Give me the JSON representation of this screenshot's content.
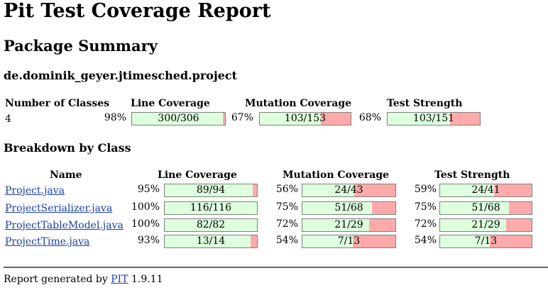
{
  "title": "Pit Test Coverage Report",
  "package_summary_heading": "Package Summary",
  "package_name": "de.dominik_geyer.jtimesched.project",
  "summary": {
    "headers": {
      "classes": "Number of Classes",
      "line": "Line Coverage",
      "mutation": "Mutation Coverage",
      "strength": "Test Strength"
    },
    "classes": "4",
    "line": {
      "percent": "98%",
      "fraction": "300/306",
      "value": 0.98
    },
    "mutation": {
      "percent": "67%",
      "fraction": "103/153",
      "value": 0.67
    },
    "strength": {
      "percent": "68%",
      "fraction": "103/151",
      "value": 0.68
    }
  },
  "breakdown": {
    "heading": "Breakdown by Class",
    "headers": {
      "name": "Name",
      "line": "Line Coverage",
      "mutation": "Mutation Coverage",
      "strength": "Test Strength"
    },
    "rows": [
      {
        "name": "Project.java",
        "line": {
          "percent": "95%",
          "fraction": "89/94",
          "value": 0.95
        },
        "mutation": {
          "percent": "56%",
          "fraction": "24/43",
          "value": 0.56
        },
        "strength": {
          "percent": "59%",
          "fraction": "24/41",
          "value": 0.59
        }
      },
      {
        "name": "ProjectSerializer.java",
        "line": {
          "percent": "100%",
          "fraction": "116/116",
          "value": 1.0
        },
        "mutation": {
          "percent": "75%",
          "fraction": "51/68",
          "value": 0.75
        },
        "strength": {
          "percent": "75%",
          "fraction": "51/68",
          "value": 0.75
        }
      },
      {
        "name": "ProjectTableModel.java",
        "line": {
          "percent": "100%",
          "fraction": "82/82",
          "value": 1.0
        },
        "mutation": {
          "percent": "72%",
          "fraction": "21/29",
          "value": 0.72
        },
        "strength": {
          "percent": "72%",
          "fraction": "21/29",
          "value": 0.72
        }
      },
      {
        "name": "ProjectTime.java",
        "line": {
          "percent": "93%",
          "fraction": "13/14",
          "value": 0.93
        },
        "mutation": {
          "percent": "54%",
          "fraction": "7/13",
          "value": 0.54
        },
        "strength": {
          "percent": "54%",
          "fraction": "7/13",
          "value": 0.54
        }
      }
    ]
  },
  "footer": {
    "prefix": "Report generated by",
    "link": "PIT",
    "version": "1.9.11"
  },
  "colors": {
    "covered": "#ddffdd",
    "uncovered": "#ffaaaa",
    "link": "#1a3fa8"
  }
}
